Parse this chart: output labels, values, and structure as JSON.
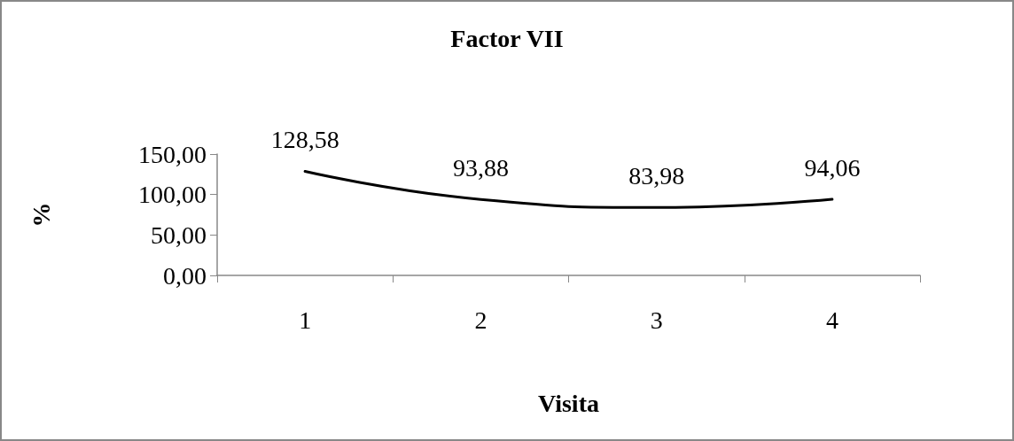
{
  "chart_data": {
    "type": "line",
    "title": "Factor VII",
    "xlabel": "Visita",
    "ylabel": "%",
    "categories": [
      "1",
      "2",
      "3",
      "4"
    ],
    "series": [
      {
        "color": "#000000",
        "values": [
          128.58,
          93.88,
          83.98,
          94.06
        ],
        "value_labels": [
          "128,58",
          "93,88",
          "83,98",
          "94,06"
        ]
      }
    ],
    "ylim": [
      0,
      150
    ],
    "yticks": [
      {
        "value": 0,
        "label": "0,00"
      },
      {
        "value": 50,
        "label": "50,00"
      },
      {
        "value": 100,
        "label": "100,00"
      },
      {
        "value": 150,
        "label": "150,00"
      }
    ],
    "grid": false,
    "marker": "none",
    "line_style": "solid"
  }
}
